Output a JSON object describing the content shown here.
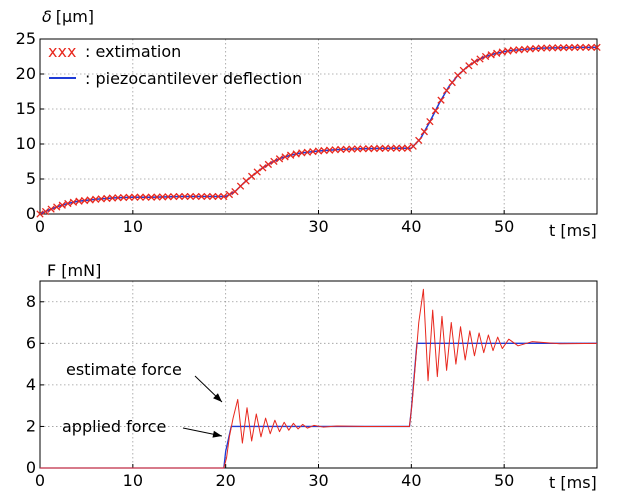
{
  "colors": {
    "estimate": "#e8281e",
    "measured": "#1f3bd6",
    "grid": "#9a9a9a",
    "axis": "#000000"
  },
  "chart_data": [
    {
      "type": "line",
      "ylabel_symbol": "δ",
      "ylabel": "[µm]",
      "xlabel": "t [ms]",
      "xlim": [
        0,
        60
      ],
      "ylim": [
        0,
        25
      ],
      "xticks": [
        0,
        10,
        30,
        40,
        50
      ],
      "yticks": [
        0,
        5,
        10,
        15,
        20,
        25
      ],
      "grid": true,
      "legend_position": "top-left",
      "legend": [
        {
          "marker": "xxx",
          "text": ": extimation"
        },
        {
          "marker": "line",
          "text": ": piezocantilever deflection"
        }
      ],
      "series": [
        {
          "name": "extimation",
          "style": "x-markers",
          "x": [
            0,
            1,
            2,
            3,
            4,
            6,
            8,
            10,
            12,
            15,
            20,
            21,
            22,
            23,
            24,
            25,
            26,
            27,
            28,
            30,
            32,
            34,
            36,
            38,
            40,
            41,
            42,
            43,
            44,
            45,
            46,
            47,
            48,
            49,
            50,
            51,
            52,
            53,
            54,
            56,
            58,
            60
          ],
          "y": [
            0,
            0.6,
            1.1,
            1.5,
            1.8,
            2.1,
            2.3,
            2.4,
            2.4,
            2.5,
            2.5,
            3.2,
            4.5,
            5.6,
            6.6,
            7.4,
            8.0,
            8.4,
            8.7,
            9.0,
            9.2,
            9.3,
            9.35,
            9.4,
            9.4,
            10.8,
            13.2,
            15.8,
            18.1,
            19.8,
            21.0,
            21.9,
            22.5,
            22.9,
            23.2,
            23.4,
            23.5,
            23.6,
            23.7,
            23.75,
            23.8,
            23.8
          ]
        },
        {
          "name": "piezocantilever deflection",
          "style": "line",
          "x": [
            0,
            1,
            2,
            3,
            4,
            6,
            8,
            10,
            12,
            15,
            20,
            21,
            22,
            23,
            24,
            25,
            26,
            27,
            28,
            30,
            32,
            34,
            36,
            38,
            40,
            41,
            42,
            43,
            44,
            45,
            46,
            47,
            48,
            49,
            50,
            51,
            52,
            53,
            54,
            56,
            58,
            60
          ],
          "y": [
            0,
            0.6,
            1.1,
            1.5,
            1.8,
            2.1,
            2.3,
            2.4,
            2.4,
            2.5,
            2.5,
            3.2,
            4.5,
            5.6,
            6.6,
            7.4,
            8.0,
            8.4,
            8.7,
            9.0,
            9.2,
            9.3,
            9.35,
            9.4,
            9.4,
            10.8,
            13.2,
            15.8,
            18.1,
            19.8,
            21.0,
            21.9,
            22.5,
            22.9,
            23.2,
            23.4,
            23.5,
            23.6,
            23.7,
            23.75,
            23.8,
            23.8
          ]
        }
      ]
    },
    {
      "type": "line",
      "ylabel": "F [mN]",
      "xlabel": "t [ms]",
      "xlim": [
        0,
        60
      ],
      "ylim": [
        0,
        9
      ],
      "xticks": [
        0,
        10,
        20,
        30,
        40,
        50
      ],
      "yticks": [
        0,
        2,
        4,
        6,
        8
      ],
      "grid": true,
      "series": [
        {
          "name": "estimate force",
          "style": "line",
          "x": [
            0,
            19.8,
            20.1,
            20.4,
            20.8,
            21.3,
            21.8,
            22.3,
            22.8,
            23.3,
            23.8,
            24.3,
            24.8,
            25.3,
            25.8,
            26.3,
            26.8,
            27.3,
            27.8,
            28.3,
            28.8,
            29.5,
            30.5,
            32,
            35,
            39.8,
            40.1,
            40.4,
            40.8,
            41.3,
            41.8,
            42.3,
            42.8,
            43.3,
            43.8,
            44.3,
            44.8,
            45.3,
            45.8,
            46.3,
            46.8,
            47.3,
            47.8,
            48.3,
            48.8,
            49.3,
            49.8,
            50.5,
            51.5,
            53,
            56,
            60
          ],
          "y": [
            0,
            0,
            0.5,
            1.5,
            2.4,
            3.3,
            1.2,
            2.9,
            1.3,
            2.6,
            1.5,
            2.4,
            1.65,
            2.3,
            1.75,
            2.2,
            1.82,
            2.15,
            1.88,
            2.1,
            1.92,
            2.05,
            1.97,
            2.02,
            2.0,
            2.0,
            3.2,
            4.8,
            7.0,
            8.6,
            4.2,
            7.6,
            4.4,
            7.3,
            4.7,
            7.0,
            5.0,
            6.8,
            5.2,
            6.6,
            5.4,
            6.5,
            5.55,
            6.4,
            5.65,
            6.3,
            5.75,
            6.2,
            5.88,
            6.08,
            5.98,
            6.0
          ]
        },
        {
          "name": "applied force",
          "style": "line",
          "x": [
            0,
            19.8,
            20.0,
            20.6,
            39.8,
            40.0,
            40.6,
            60
          ],
          "y": [
            0,
            0,
            0.8,
            2,
            2,
            2.8,
            6,
            6
          ]
        }
      ],
      "annotations": [
        {
          "text": "estimate force",
          "points_to": [
            20.9,
            3.2
          ]
        },
        {
          "text": "applied force",
          "points_to": [
            20.8,
            1.75
          ]
        }
      ]
    }
  ]
}
